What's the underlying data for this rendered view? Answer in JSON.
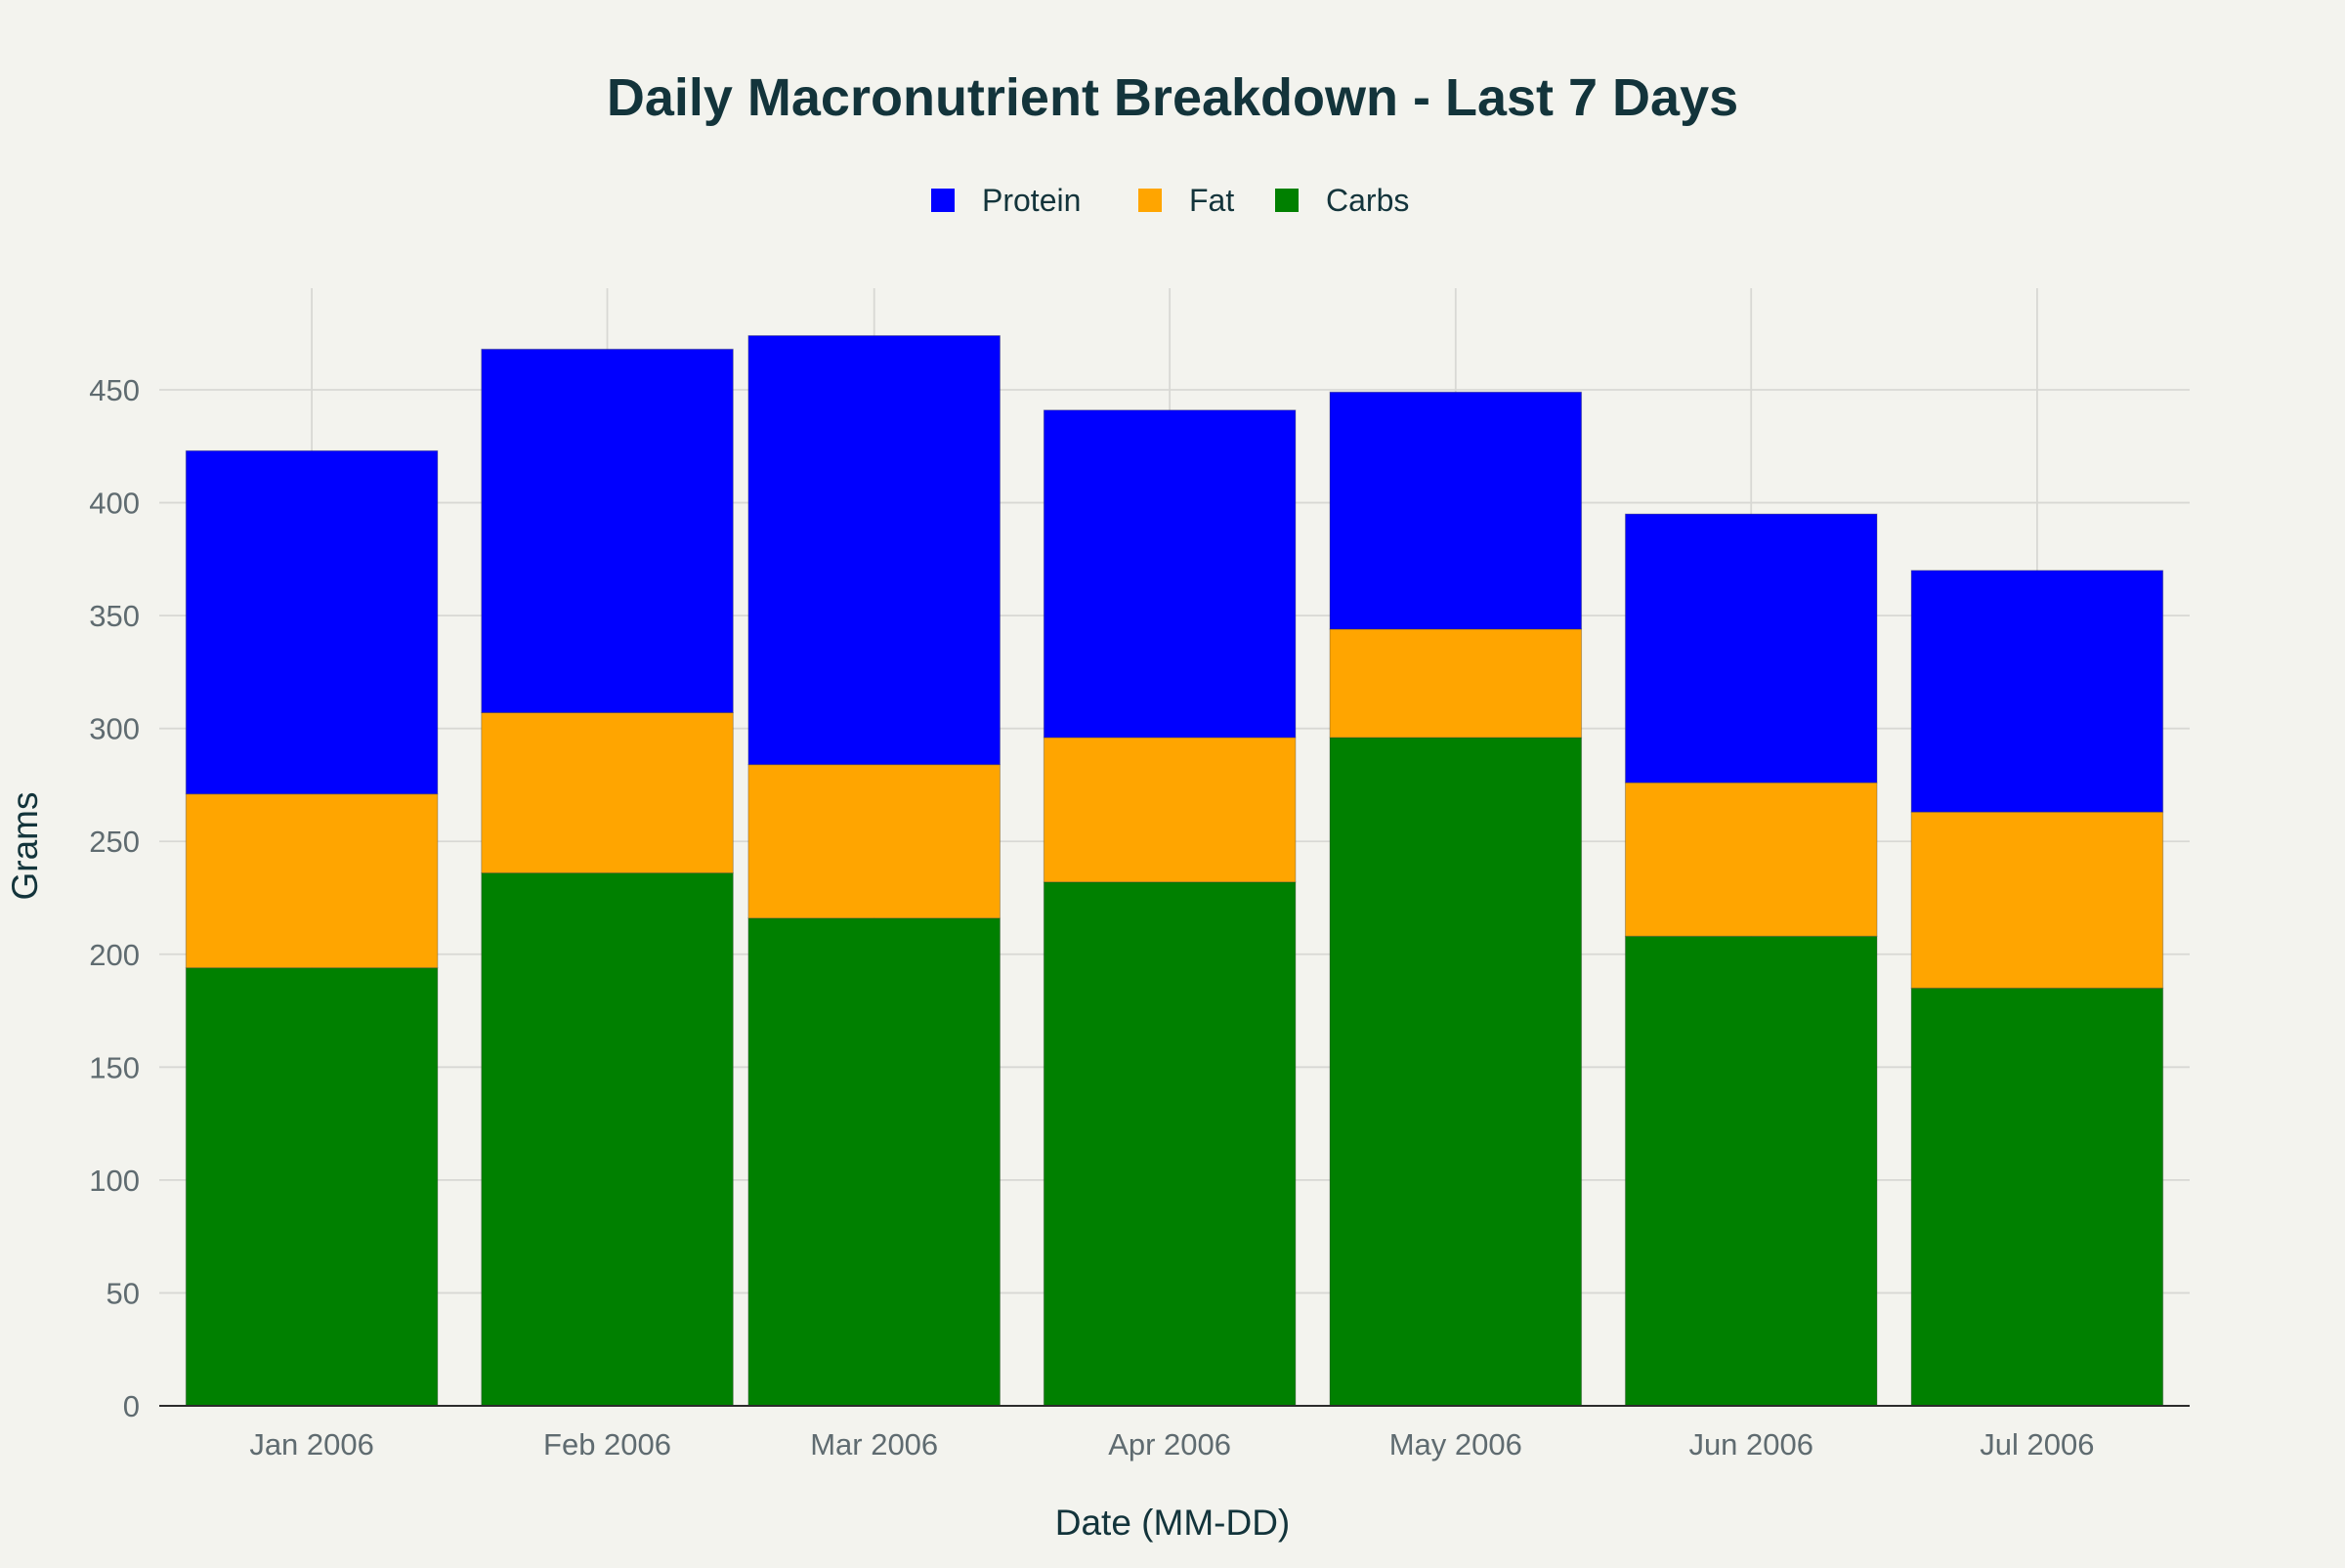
{
  "chart_data": {
    "type": "bar",
    "stacked": true,
    "title": "Daily Macronutrient Breakdown - Last 7 Days",
    "xlabel": "Date (MM-DD)",
    "ylabel": "Grams",
    "categories": [
      "Jan 2006",
      "Feb 2006",
      "Mar 2006",
      "Apr 2006",
      "May 2006",
      "Jun 2006",
      "Jul 2006"
    ],
    "x_dates": [
      "2006-01-01",
      "2006-02-01",
      "2006-03-01",
      "2006-04-01",
      "2006-05-01",
      "2006-06-01",
      "2006-07-01"
    ],
    "series": [
      {
        "name": "Carbs",
        "color": "#008000",
        "values": [
          194,
          236,
          216,
          232,
          296,
          208,
          185
        ]
      },
      {
        "name": "Fat",
        "color": "#ffa500",
        "values": [
          77,
          71,
          68,
          64,
          48,
          68,
          78
        ]
      },
      {
        "name": "Protein",
        "color": "#0000ff",
        "values": [
          152,
          161,
          190,
          145,
          105,
          119,
          107
        ]
      }
    ],
    "legend_order": [
      "Protein",
      "Fat",
      "Carbs"
    ],
    "legend_position": "top-center",
    "ylim": [
      0,
      495
    ],
    "yticks": [
      0,
      50,
      100,
      150,
      200,
      250,
      300,
      350,
      400,
      450
    ],
    "grid": true
  }
}
